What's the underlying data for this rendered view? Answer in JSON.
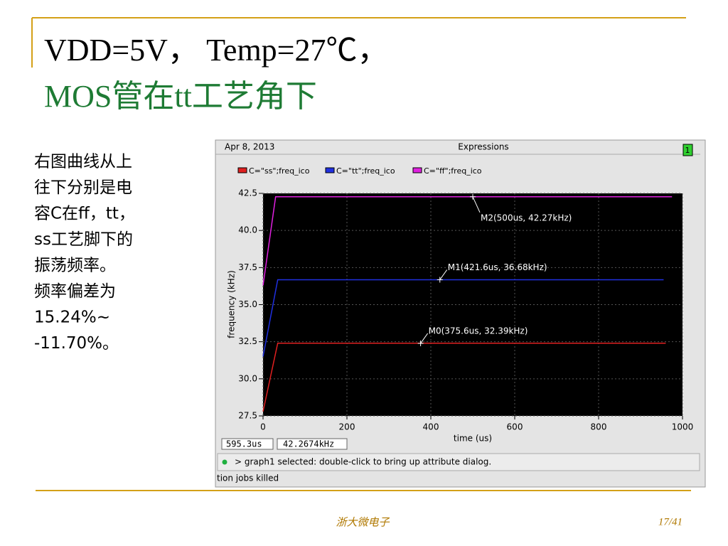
{
  "title": {
    "line1": "VDD=5V， Temp=27℃，",
    "line2": "MOS管在tt工艺角下"
  },
  "body": [
    "右图曲线从上",
    "往下分别是电",
    "容C在ff，tt，",
    "ss工艺脚下的",
    "振荡频率。",
    "频率偏差为",
    "15.24%~",
    "-11.70%。"
  ],
  "window": {
    "date": "Apr 8, 2013",
    "heading": "Expressions",
    "badge": "1",
    "readout_x": "595.3us",
    "readout_y": "42.2674kHz",
    "status": "> graph1 selected: double-click to bring up attribute dialog.",
    "log": "tion jobs killed"
  },
  "footer": {
    "org": "浙大微电子",
    "page": "17/41"
  },
  "chart_data": {
    "type": "line",
    "xlabel": "time (us)",
    "ylabel": "frequency (kHz)",
    "xlim": [
      0,
      1000
    ],
    "ylim": [
      27.5,
      42.5
    ],
    "xticks": [
      0,
      200,
      400,
      600,
      800,
      1000
    ],
    "yticks": [
      27.5,
      {
        "value": 30,
        "label": "30.0"
      },
      32.5,
      {
        "value": 35,
        "label": "35.0"
      },
      37.5,
      {
        "value": 40,
        "label": "40.0"
      },
      42.5
    ],
    "grid": true,
    "series": [
      {
        "name": "C=\"ss\";freq_ico",
        "color": "#e02020",
        "x": [
          0,
          35,
          960
        ],
        "values": [
          27.8,
          32.4,
          32.4
        ]
      },
      {
        "name": "C=\"tt\";freq_ico",
        "color": "#2030e0",
        "x": [
          0,
          35,
          955
        ],
        "values": [
          31.5,
          36.68,
          36.68
        ]
      },
      {
        "name": "C=\"ff\";freq_ico",
        "color": "#e020e0",
        "x": [
          0,
          30,
          975
        ],
        "values": [
          36.3,
          42.27,
          42.27
        ]
      }
    ],
    "markers": [
      {
        "label": "M0(375.6us, 32.39kHz)",
        "x": 375.6,
        "y": 32.39
      },
      {
        "label": "M1(421.6us, 36.68kHz)",
        "x": 421.6,
        "y": 36.68
      },
      {
        "label": "M2(500us, 42.27kHz)",
        "x": 500,
        "y": 42.27
      }
    ]
  }
}
